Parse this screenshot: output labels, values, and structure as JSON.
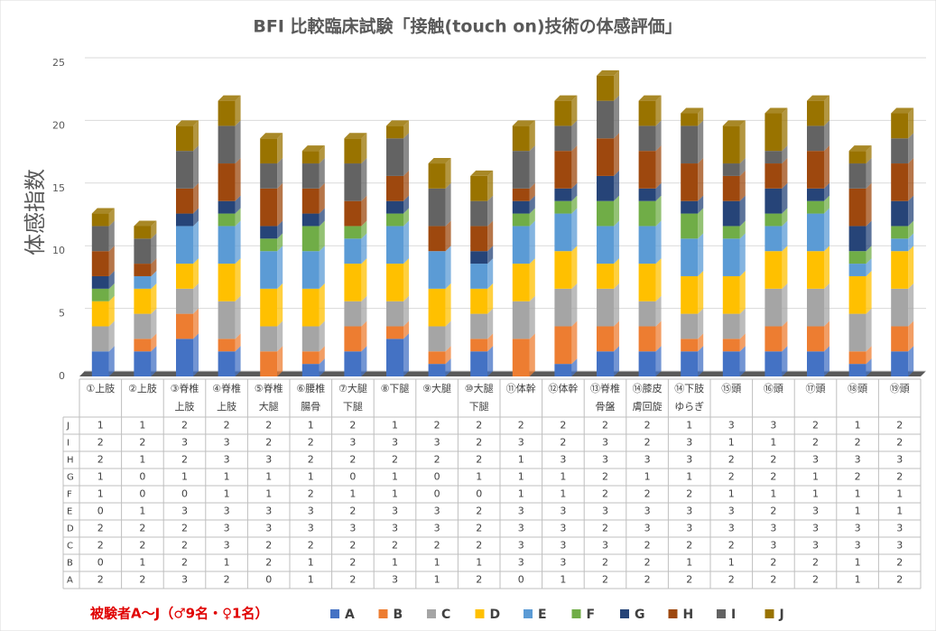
{
  "chart_data": {
    "type": "bar",
    "stacked": true,
    "title": "BFI 比較臨床試験「接触(touch on)技術の体感評価」",
    "y_label": "体感指数",
    "legend_note": "被験者A～J（♂9名・♀1名）",
    "categories": [
      [
        "①上肢"
      ],
      [
        "②上肢"
      ],
      [
        "③脊椎",
        "上肢"
      ],
      [
        "④脊椎",
        "上肢"
      ],
      [
        "⑤脊椎",
        "大腿"
      ],
      [
        "⑥腰椎",
        "腸骨"
      ],
      [
        "⑦大腿",
        "下腿"
      ],
      [
        "⑧下腿"
      ],
      [
        "⑨大腿"
      ],
      [
        "⑩大腿",
        "下腿"
      ],
      [
        "⑪体幹"
      ],
      [
        "⑫体幹"
      ],
      [
        "⑬脊椎",
        "骨盤"
      ],
      [
        "⑭膝皮",
        "膚回旋"
      ],
      [
        "⑭下肢",
        "ゆらぎ"
      ],
      [
        "⑮頭"
      ],
      [
        "⑯頭"
      ],
      [
        "⑰頭"
      ],
      [
        "⑱頭"
      ],
      [
        "⑲頭"
      ]
    ],
    "series": [
      {
        "name": "A",
        "color": "#4472c4",
        "values": [
          2,
          2,
          3,
          2,
          0,
          1,
          2,
          3,
          1,
          2,
          0,
          1,
          2,
          2,
          2,
          2,
          2,
          2,
          1,
          2
        ]
      },
      {
        "name": "B",
        "color": "#ed7d31",
        "values": [
          0,
          1,
          2,
          1,
          2,
          1,
          2,
          1,
          1,
          1,
          3,
          3,
          2,
          2,
          1,
          1,
          2,
          2,
          1,
          2
        ]
      },
      {
        "name": "C",
        "color": "#a5a5a5",
        "values": [
          2,
          2,
          2,
          3,
          2,
          2,
          2,
          2,
          2,
          2,
          3,
          3,
          3,
          2,
          2,
          2,
          3,
          3,
          3,
          3
        ]
      },
      {
        "name": "D",
        "color": "#ffc000",
        "values": [
          2,
          2,
          2,
          3,
          3,
          3,
          3,
          3,
          3,
          2,
          3,
          3,
          2,
          3,
          3,
          3,
          3,
          3,
          3,
          3
        ]
      },
      {
        "name": "E",
        "color": "#5b9bd5",
        "values": [
          0,
          1,
          3,
          3,
          3,
          3,
          2,
          3,
          3,
          2,
          3,
          3,
          3,
          3,
          3,
          3,
          2,
          3,
          1,
          1
        ]
      },
      {
        "name": "F",
        "color": "#70ad47",
        "values": [
          1,
          0,
          0,
          1,
          1,
          2,
          1,
          1,
          0,
          0,
          1,
          1,
          2,
          2,
          2,
          1,
          1,
          1,
          1,
          1
        ]
      },
      {
        "name": "G",
        "color": "#264478",
        "values": [
          1,
          0,
          1,
          1,
          1,
          1,
          0,
          1,
          0,
          1,
          1,
          1,
          2,
          1,
          1,
          2,
          2,
          1,
          2,
          2
        ]
      },
      {
        "name": "H",
        "color": "#9e480e",
        "values": [
          2,
          1,
          2,
          3,
          3,
          2,
          2,
          2,
          2,
          2,
          1,
          3,
          3,
          3,
          3,
          2,
          2,
          3,
          3,
          3
        ]
      },
      {
        "name": "I",
        "color": "#636363",
        "values": [
          2,
          2,
          3,
          3,
          2,
          2,
          3,
          3,
          3,
          2,
          3,
          2,
          3,
          2,
          3,
          1,
          1,
          2,
          2,
          2
        ]
      },
      {
        "name": "J",
        "color": "#997300",
        "values": [
          1,
          1,
          2,
          2,
          2,
          1,
          2,
          1,
          2,
          2,
          2,
          2,
          2,
          2,
          1,
          3,
          3,
          2,
          1,
          2
        ]
      }
    ],
    "ylim": [
      0,
      25
    ],
    "yticks": [
      0,
      5,
      10,
      15,
      20,
      25
    ],
    "grid": true
  }
}
